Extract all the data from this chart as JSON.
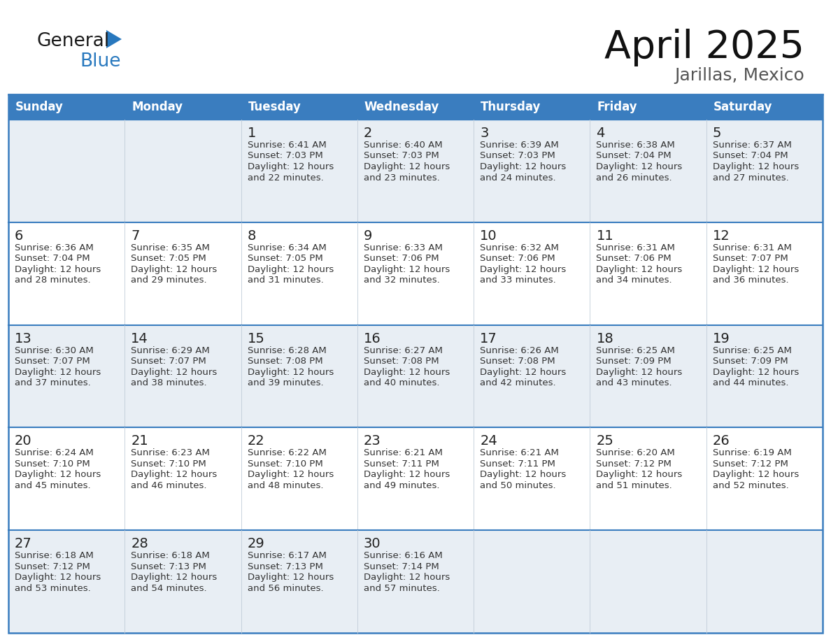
{
  "title": "April 2025",
  "subtitle": "Jarillas, Mexico",
  "header_bg_color": "#3a7dbf",
  "header_text_color": "#ffffff",
  "cell_bg_even": "#e8eef4",
  "cell_bg_odd": "#ffffff",
  "border_color": "#3a7dbf",
  "text_color": "#333333",
  "day_number_color": "#222222",
  "days_of_week": [
    "Sunday",
    "Monday",
    "Tuesday",
    "Wednesday",
    "Thursday",
    "Friday",
    "Saturday"
  ],
  "calendar_data": [
    [
      {
        "day": "",
        "sunrise": "",
        "sunset": "",
        "daylight": ""
      },
      {
        "day": "",
        "sunrise": "",
        "sunset": "",
        "daylight": ""
      },
      {
        "day": "1",
        "sunrise": "6:41 AM",
        "sunset": "7:03 PM",
        "daylight": "22 minutes."
      },
      {
        "day": "2",
        "sunrise": "6:40 AM",
        "sunset": "7:03 PM",
        "daylight": "23 minutes."
      },
      {
        "day": "3",
        "sunrise": "6:39 AM",
        "sunset": "7:03 PM",
        "daylight": "24 minutes."
      },
      {
        "day": "4",
        "sunrise": "6:38 AM",
        "sunset": "7:04 PM",
        "daylight": "26 minutes."
      },
      {
        "day": "5",
        "sunrise": "6:37 AM",
        "sunset": "7:04 PM",
        "daylight": "27 minutes."
      }
    ],
    [
      {
        "day": "6",
        "sunrise": "6:36 AM",
        "sunset": "7:04 PM",
        "daylight": "28 minutes."
      },
      {
        "day": "7",
        "sunrise": "6:35 AM",
        "sunset": "7:05 PM",
        "daylight": "29 minutes."
      },
      {
        "day": "8",
        "sunrise": "6:34 AM",
        "sunset": "7:05 PM",
        "daylight": "31 minutes."
      },
      {
        "day": "9",
        "sunrise": "6:33 AM",
        "sunset": "7:06 PM",
        "daylight": "32 minutes."
      },
      {
        "day": "10",
        "sunrise": "6:32 AM",
        "sunset": "7:06 PM",
        "daylight": "33 minutes."
      },
      {
        "day": "11",
        "sunrise": "6:31 AM",
        "sunset": "7:06 PM",
        "daylight": "34 minutes."
      },
      {
        "day": "12",
        "sunrise": "6:31 AM",
        "sunset": "7:07 PM",
        "daylight": "36 minutes."
      }
    ],
    [
      {
        "day": "13",
        "sunrise": "6:30 AM",
        "sunset": "7:07 PM",
        "daylight": "37 minutes."
      },
      {
        "day": "14",
        "sunrise": "6:29 AM",
        "sunset": "7:07 PM",
        "daylight": "38 minutes."
      },
      {
        "day": "15",
        "sunrise": "6:28 AM",
        "sunset": "7:08 PM",
        "daylight": "39 minutes."
      },
      {
        "day": "16",
        "sunrise": "6:27 AM",
        "sunset": "7:08 PM",
        "daylight": "40 minutes."
      },
      {
        "day": "17",
        "sunrise": "6:26 AM",
        "sunset": "7:08 PM",
        "daylight": "42 minutes."
      },
      {
        "day": "18",
        "sunrise": "6:25 AM",
        "sunset": "7:09 PM",
        "daylight": "43 minutes."
      },
      {
        "day": "19",
        "sunrise": "6:25 AM",
        "sunset": "7:09 PM",
        "daylight": "44 minutes."
      }
    ],
    [
      {
        "day": "20",
        "sunrise": "6:24 AM",
        "sunset": "7:10 PM",
        "daylight": "45 minutes."
      },
      {
        "day": "21",
        "sunrise": "6:23 AM",
        "sunset": "7:10 PM",
        "daylight": "46 minutes."
      },
      {
        "day": "22",
        "sunrise": "6:22 AM",
        "sunset": "7:10 PM",
        "daylight": "48 minutes."
      },
      {
        "day": "23",
        "sunrise": "6:21 AM",
        "sunset": "7:11 PM",
        "daylight": "49 minutes."
      },
      {
        "day": "24",
        "sunrise": "6:21 AM",
        "sunset": "7:11 PM",
        "daylight": "50 minutes."
      },
      {
        "day": "25",
        "sunrise": "6:20 AM",
        "sunset": "7:12 PM",
        "daylight": "51 minutes."
      },
      {
        "day": "26",
        "sunrise": "6:19 AM",
        "sunset": "7:12 PM",
        "daylight": "52 minutes."
      }
    ],
    [
      {
        "day": "27",
        "sunrise": "6:18 AM",
        "sunset": "7:12 PM",
        "daylight": "53 minutes."
      },
      {
        "day": "28",
        "sunrise": "6:18 AM",
        "sunset": "7:13 PM",
        "daylight": "54 minutes."
      },
      {
        "day": "29",
        "sunrise": "6:17 AM",
        "sunset": "7:13 PM",
        "daylight": "56 minutes."
      },
      {
        "day": "30",
        "sunrise": "6:16 AM",
        "sunset": "7:14 PM",
        "daylight": "57 minutes."
      },
      {
        "day": "",
        "sunrise": "",
        "sunset": "",
        "daylight": ""
      },
      {
        "day": "",
        "sunrise": "",
        "sunset": "",
        "daylight": ""
      },
      {
        "day": "",
        "sunrise": "",
        "sunset": "",
        "daylight": ""
      }
    ]
  ],
  "logo_color_general": "#1a1a1a",
  "logo_color_blue": "#2878be",
  "logo_triangle_color": "#2878be",
  "title_fontsize": 40,
  "subtitle_fontsize": 18,
  "header_fontsize": 12,
  "day_num_fontsize": 14,
  "cell_text_fontsize": 9.5
}
